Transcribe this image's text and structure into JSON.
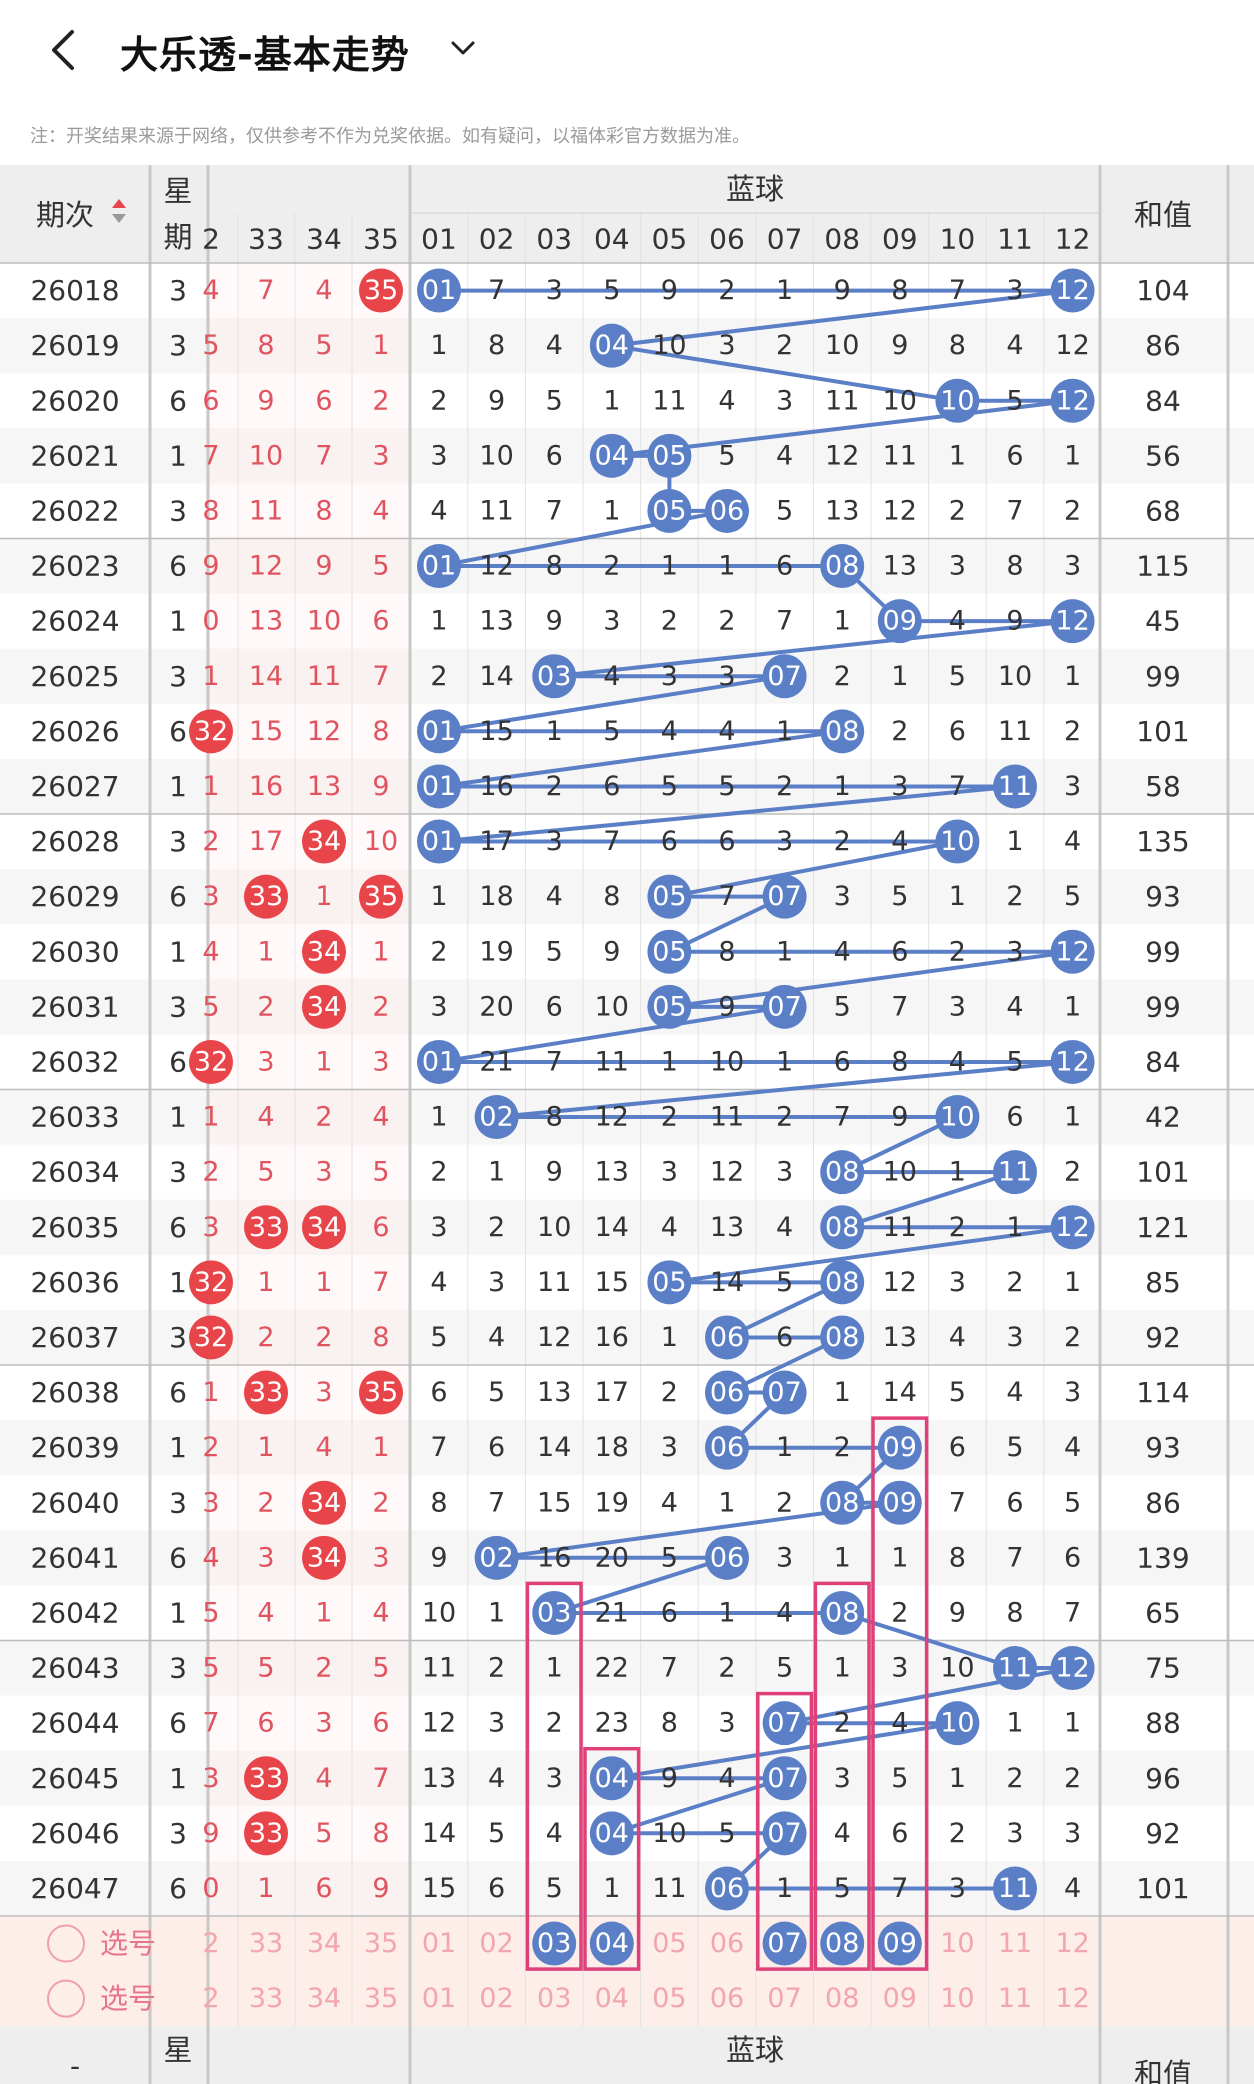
{
  "header": {
    "title": "大乐透-基本走势"
  },
  "note": "注：开奖结果来源于网络，仅供参考不作为兑奖依据。如有疑问，以福体彩官方数据为准。",
  "table": {
    "col_period": "期次",
    "col_week": "星期",
    "blue_title": "蓝球",
    "col_sum": "和值",
    "red_cols": [
      "2",
      "33",
      "34",
      "35"
    ],
    "blue_cols": [
      "01",
      "02",
      "03",
      "04",
      "05",
      "06",
      "07",
      "08",
      "09",
      "10",
      "11",
      "12"
    ],
    "select_label": "选号",
    "select_red": [
      "2",
      "33",
      "34",
      "35"
    ],
    "select_blue": [
      "01",
      "02",
      "03",
      "04",
      "05",
      "06",
      "07",
      "08",
      "09",
      "10",
      "11",
      "12"
    ],
    "footer_period": "-",
    "rows": [
      {
        "p": "26018",
        "w": "3",
        "r": [
          "4",
          "7",
          "4",
          "35"
        ],
        "b": [
          "01",
          "7",
          "3",
          "5",
          "9",
          "2",
          "1",
          "9",
          "8",
          "7",
          "3",
          "12"
        ],
        "s": "104"
      },
      {
        "p": "26019",
        "w": "3",
        "r": [
          "5",
          "8",
          "5",
          "1"
        ],
        "b": [
          "1",
          "8",
          "4",
          "04",
          "10",
          "3",
          "2",
          "10",
          "9",
          "8",
          "4",
          "12"
        ],
        "s": "86"
      },
      {
        "p": "26020",
        "w": "6",
        "r": [
          "6",
          "9",
          "6",
          "2"
        ],
        "b": [
          "2",
          "9",
          "5",
          "1",
          "11",
          "4",
          "3",
          "11",
          "10",
          "10",
          "5",
          "12"
        ],
        "s": "84"
      },
      {
        "p": "26021",
        "w": "1",
        "r": [
          "7",
          "10",
          "7",
          "3"
        ],
        "b": [
          "3",
          "10",
          "6",
          "04",
          "05",
          "5",
          "4",
          "12",
          "11",
          "1",
          "6",
          "1"
        ],
        "s": "56"
      },
      {
        "p": "26022",
        "w": "3",
        "r": [
          "8",
          "11",
          "8",
          "4"
        ],
        "b": [
          "4",
          "11",
          "7",
          "1",
          "05",
          "06",
          "5",
          "13",
          "12",
          "2",
          "7",
          "2"
        ],
        "s": "68"
      },
      {
        "p": "26023",
        "w": "6",
        "r": [
          "9",
          "12",
          "9",
          "5"
        ],
        "b": [
          "01",
          "12",
          "8",
          "2",
          "1",
          "1",
          "6",
          "08",
          "13",
          "3",
          "8",
          "3"
        ],
        "s": "115"
      },
      {
        "p": "26024",
        "w": "1",
        "r": [
          "0",
          "13",
          "10",
          "6"
        ],
        "b": [
          "1",
          "13",
          "9",
          "3",
          "2",
          "2",
          "7",
          "1",
          "09",
          "4",
          "9",
          "12"
        ],
        "s": "45"
      },
      {
        "p": "26025",
        "w": "3",
        "r": [
          "1",
          "14",
          "11",
          "7"
        ],
        "b": [
          "2",
          "14",
          "03",
          "4",
          "3",
          "3",
          "07",
          "2",
          "1",
          "5",
          "10",
          "1"
        ],
        "s": "99"
      },
      {
        "p": "26026",
        "w": "6",
        "r": [
          "32",
          "15",
          "12",
          "8"
        ],
        "b": [
          "01",
          "15",
          "1",
          "5",
          "4",
          "4",
          "1",
          "08",
          "2",
          "6",
          "11",
          "2"
        ],
        "s": "101"
      },
      {
        "p": "26027",
        "w": "1",
        "r": [
          "1",
          "16",
          "13",
          "9"
        ],
        "b": [
          "01",
          "16",
          "2",
          "6",
          "5",
          "5",
          "2",
          "1",
          "3",
          "7",
          "11",
          "3"
        ],
        "s": "58"
      },
      {
        "p": "26028",
        "w": "3",
        "r": [
          "2",
          "17",
          "34",
          "10"
        ],
        "b": [
          "01",
          "17",
          "3",
          "7",
          "6",
          "6",
          "3",
          "2",
          "4",
          "10",
          "1",
          "4"
        ],
        "s": "135"
      },
      {
        "p": "26029",
        "w": "6",
        "r": [
          "3",
          "33",
          "1",
          "35"
        ],
        "b": [
          "1",
          "18",
          "4",
          "8",
          "05",
          "7",
          "07",
          "3",
          "5",
          "1",
          "2",
          "5"
        ],
        "s": "93"
      },
      {
        "p": "26030",
        "w": "1",
        "r": [
          "4",
          "1",
          "34",
          "1"
        ],
        "b": [
          "2",
          "19",
          "5",
          "9",
          "05",
          "8",
          "1",
          "4",
          "6",
          "2",
          "3",
          "12"
        ],
        "s": "99"
      },
      {
        "p": "26031",
        "w": "3",
        "r": [
          "5",
          "2",
          "34",
          "2"
        ],
        "b": [
          "3",
          "20",
          "6",
          "10",
          "05",
          "9",
          "07",
          "5",
          "7",
          "3",
          "4",
          "1"
        ],
        "s": "99"
      },
      {
        "p": "26032",
        "w": "6",
        "r": [
          "32",
          "3",
          "1",
          "3"
        ],
        "b": [
          "01",
          "21",
          "7",
          "11",
          "1",
          "10",
          "1",
          "6",
          "8",
          "4",
          "5",
          "12"
        ],
        "s": "84"
      },
      {
        "p": "26033",
        "w": "1",
        "r": [
          "1",
          "4",
          "2",
          "4"
        ],
        "b": [
          "1",
          "02",
          "8",
          "12",
          "2",
          "11",
          "2",
          "7",
          "9",
          "10",
          "6",
          "1"
        ],
        "s": "42"
      },
      {
        "p": "26034",
        "w": "3",
        "r": [
          "2",
          "5",
          "3",
          "5"
        ],
        "b": [
          "2",
          "1",
          "9",
          "13",
          "3",
          "12",
          "3",
          "08",
          "10",
          "1",
          "11",
          "2"
        ],
        "s": "101"
      },
      {
        "p": "26035",
        "w": "6",
        "r": [
          "3",
          "33",
          "34",
          "6"
        ],
        "b": [
          "3",
          "2",
          "10",
          "14",
          "4",
          "13",
          "4",
          "08",
          "11",
          "2",
          "1",
          "12"
        ],
        "s": "121"
      },
      {
        "p": "26036",
        "w": "1",
        "r": [
          "32",
          "1",
          "1",
          "7"
        ],
        "b": [
          "4",
          "3",
          "11",
          "15",
          "05",
          "14",
          "5",
          "08",
          "12",
          "3",
          "2",
          "1"
        ],
        "s": "85"
      },
      {
        "p": "26037",
        "w": "3",
        "r": [
          "32",
          "2",
          "2",
          "8"
        ],
        "b": [
          "5",
          "4",
          "12",
          "16",
          "1",
          "06",
          "6",
          "08",
          "13",
          "4",
          "3",
          "2"
        ],
        "s": "92"
      },
      {
        "p": "26038",
        "w": "6",
        "r": [
          "1",
          "33",
          "3",
          "35"
        ],
        "b": [
          "6",
          "5",
          "13",
          "17",
          "2",
          "06",
          "07",
          "1",
          "14",
          "5",
          "4",
          "3"
        ],
        "s": "114"
      },
      {
        "p": "26039",
        "w": "1",
        "r": [
          "2",
          "1",
          "4",
          "1"
        ],
        "b": [
          "7",
          "6",
          "14",
          "18",
          "3",
          "06",
          "1",
          "2",
          "09",
          "6",
          "5",
          "4"
        ],
        "s": "93"
      },
      {
        "p": "26040",
        "w": "3",
        "r": [
          "3",
          "2",
          "34",
          "2"
        ],
        "b": [
          "8",
          "7",
          "15",
          "19",
          "4",
          "1",
          "2",
          "08",
          "09",
          "7",
          "6",
          "5"
        ],
        "s": "86"
      },
      {
        "p": "26041",
        "w": "6",
        "r": [
          "4",
          "3",
          "34",
          "3"
        ],
        "b": [
          "9",
          "02",
          "16",
          "20",
          "5",
          "06",
          "3",
          "1",
          "1",
          "8",
          "7",
          "6"
        ],
        "s": "139"
      },
      {
        "p": "26042",
        "w": "1",
        "r": [
          "5",
          "4",
          "1",
          "4"
        ],
        "b": [
          "10",
          "1",
          "03",
          "21",
          "6",
          "1",
          "4",
          "08",
          "2",
          "9",
          "8",
          "7"
        ],
        "s": "65"
      },
      {
        "p": "26043",
        "w": "3",
        "r": [
          "5",
          "5",
          "2",
          "5"
        ],
        "b": [
          "11",
          "2",
          "1",
          "22",
          "7",
          "2",
          "5",
          "1",
          "3",
          "10",
          "11",
          "12"
        ],
        "s": "75"
      },
      {
        "p": "26044",
        "w": "6",
        "r": [
          "7",
          "6",
          "3",
          "6"
        ],
        "b": [
          "12",
          "3",
          "2",
          "23",
          "8",
          "3",
          "07",
          "2",
          "4",
          "10",
          "1",
          "1"
        ],
        "s": "88"
      },
      {
        "p": "26045",
        "w": "1",
        "r": [
          "3",
          "33",
          "4",
          "7"
        ],
        "b": [
          "13",
          "4",
          "3",
          "04",
          "9",
          "4",
          "07",
          "3",
          "5",
          "1",
          "2",
          "2"
        ],
        "s": "96"
      },
      {
        "p": "26046",
        "w": "3",
        "r": [
          "9",
          "33",
          "5",
          "8"
        ],
        "b": [
          "14",
          "5",
          "4",
          "04",
          "10",
          "5",
          "07",
          "4",
          "6",
          "2",
          "3",
          "3"
        ],
        "s": "92"
      },
      {
        "p": "26047",
        "w": "6",
        "r": [
          "0",
          "1",
          "6",
          "9"
        ],
        "b": [
          "15",
          "6",
          "5",
          "1",
          "11",
          "06",
          "1",
          "5",
          "7",
          "3",
          "11",
          "4"
        ],
        "s": "101"
      }
    ],
    "blue_hits": [
      [
        0,
        11
      ],
      [
        3
      ],
      [
        9,
        11
      ],
      [
        3,
        4
      ],
      [
        4,
        5
      ],
      [
        0,
        7
      ],
      [
        8,
        11
      ],
      [
        2,
        6
      ],
      [
        0,
        7
      ],
      [
        0,
        10
      ],
      [
        0,
        9
      ],
      [
        4,
        6
      ],
      [
        4,
        11
      ],
      [
        4,
        6
      ],
      [
        0,
        11
      ],
      [
        1,
        9
      ],
      [
        7,
        10
      ],
      [
        7,
        11
      ],
      [
        4,
        7
      ],
      [
        5,
        7
      ],
      [
        5,
        6
      ],
      [
        5,
        8
      ],
      [
        7,
        8
      ],
      [
        1,
        5
      ],
      [
        2,
        7
      ],
      [
        10,
        11
      ],
      [
        6,
        9
      ],
      [
        3,
        6
      ],
      [
        3,
        6
      ],
      [
        5,
        10
      ]
    ],
    "red_hits": [
      [
        3
      ],
      [],
      [],
      [],
      [],
      [],
      [],
      [],
      [
        0
      ],
      [],
      [
        2
      ],
      [
        1,
        3
      ],
      [
        2
      ],
      [
        2
      ],
      [
        0
      ],
      [],
      [],
      [
        1,
        2
      ],
      [
        0
      ],
      [
        0
      ],
      [
        1,
        3
      ],
      [],
      [
        2
      ],
      [
        2
      ],
      [],
      [],
      [],
      [
        1
      ],
      [
        1
      ],
      []
    ],
    "select_blue_hits": [
      2,
      3,
      6,
      7,
      8
    ],
    "highlight_boxes": [
      {
        "col": 2,
        "from": 24,
        "to": 30
      },
      {
        "col": 3,
        "from": 27,
        "to": 30
      },
      {
        "col": 6,
        "from": 26,
        "to": 30
      },
      {
        "col": 7,
        "from": 24,
        "to": 30
      },
      {
        "col": 8,
        "from": 21,
        "to": 30
      }
    ]
  },
  "colors": {
    "blue_ball": "#5b7fc7",
    "red_ball": "#e8454b",
    "red_text": "#e05460",
    "line": "#5b7fc7",
    "header_bg": "#eeeeee",
    "box": "#e0407a",
    "select_bg": "#fdeee9"
  }
}
